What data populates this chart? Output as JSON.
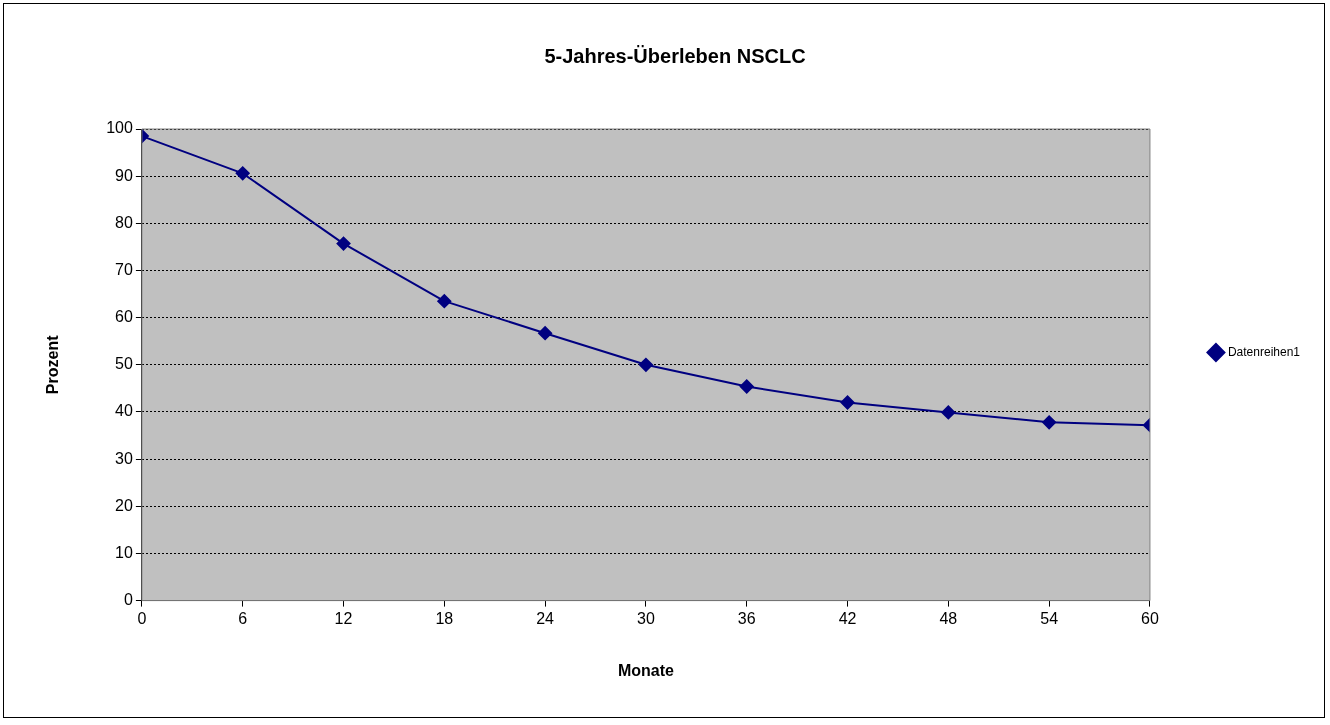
{
  "chart_data": {
    "type": "line",
    "title": "5-Jahres-Überleben NSCLC",
    "xlabel": "Monate",
    "ylabel": "Prozent",
    "x": [
      0,
      6,
      12,
      18,
      24,
      30,
      36,
      42,
      48,
      54,
      60
    ],
    "series": [
      {
        "name": "Datenreihen1",
        "color": "#000080",
        "values": [
          98.5,
          90.6,
          75.7,
          63.5,
          56.7,
          50.0,
          45.4,
          42.0,
          39.9,
          37.8,
          37.2
        ]
      }
    ],
    "xlim": [
      0,
      60
    ],
    "xticks": [
      0,
      6,
      12,
      18,
      24,
      30,
      36,
      42,
      48,
      54,
      60
    ],
    "ylim": [
      0,
      100
    ],
    "yticks": [
      0,
      10,
      20,
      30,
      40,
      50,
      60,
      70,
      80,
      90,
      100
    ],
    "grid": "y",
    "legend": "right",
    "marker": "diamond",
    "line_style": "solid"
  }
}
